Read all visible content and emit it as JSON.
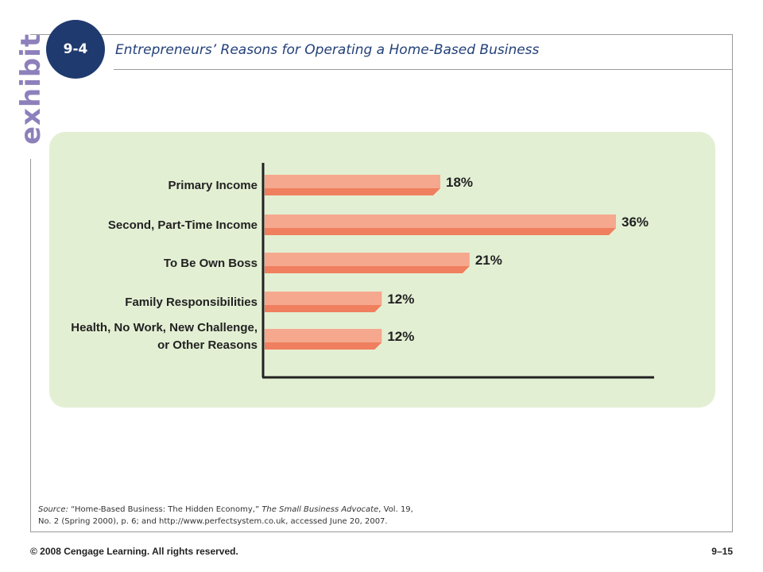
{
  "brand": {
    "exhibit_word": "exhibit",
    "badge": "9-4"
  },
  "title": "Entrepreneurs’ Reasons for Operating a Home-Based Business",
  "chart_data": {
    "type": "bar",
    "orientation": "horizontal",
    "categories": [
      [
        "Primary Income"
      ],
      [
        "Second, Part-Time Income"
      ],
      [
        "To Be Own Boss"
      ],
      [
        "Family Responsibilities"
      ],
      [
        "Health, No Work, New Challenge,",
        "or Other Reasons"
      ]
    ],
    "values": [
      18,
      36,
      21,
      12,
      12
    ],
    "value_labels": [
      "18%",
      "36%",
      "21%",
      "12%",
      "12%"
    ],
    "xlim": [
      0,
      40
    ],
    "grid": false,
    "legend": "none",
    "colors": {
      "bar_top": "#f5a88e",
      "bar_bottom": "#ef7f5e",
      "panel": "#e3efd3",
      "axis": "#222222"
    }
  },
  "source": {
    "prefix": "Source:",
    "text1": " “Home-Based Business: The Hidden Economy,” ",
    "publication": "The Small Business Advocate",
    "text2": ", Vol. 19,",
    "line2": "No. 2 (Spring 2000), p. 6; and http://www.perfectsystem.co.uk, accessed June 20, 2007."
  },
  "footer": {
    "copyright": "© 2008 Cengage Learning. All rights reserved.",
    "page": "9–15"
  }
}
